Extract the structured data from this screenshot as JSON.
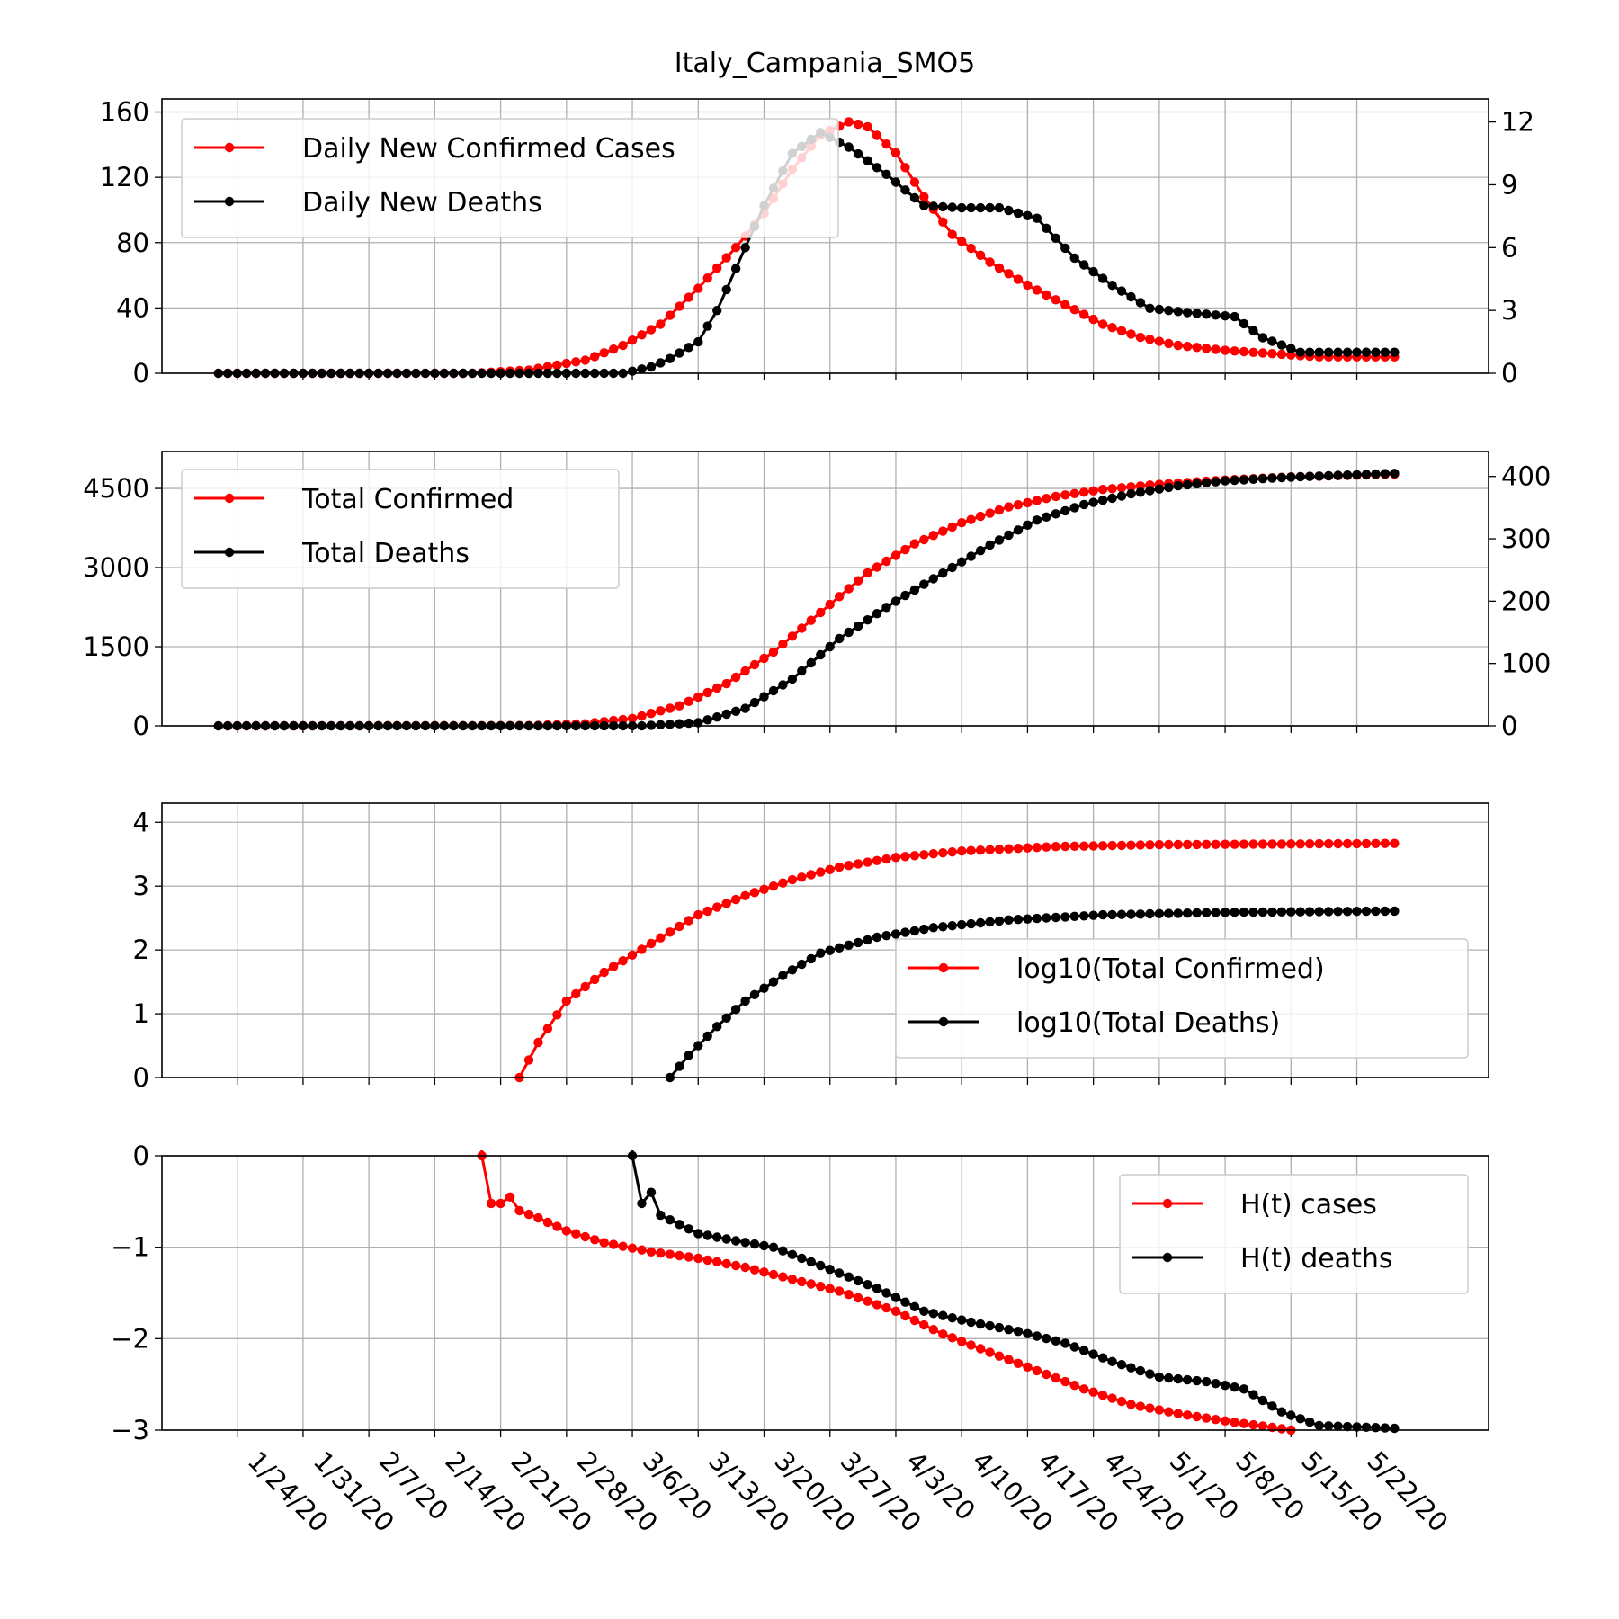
{
  "title": "Italy_Campania_SMO5",
  "colors": {
    "cases": "#ff0000",
    "deaths": "#000000",
    "grid": "#b0b0b0"
  },
  "x_tick_labels": [
    "1/24/20",
    "1/31/20",
    "2/7/20",
    "2/14/20",
    "2/21/20",
    "2/28/20",
    "3/6/20",
    "3/13/20",
    "3/20/20",
    "3/27/20",
    "4/3/20",
    "4/10/20",
    "4/17/20",
    "4/24/20",
    "5/1/20",
    "5/8/20",
    "5/15/20",
    "5/22/20"
  ],
  "chart_data": [
    {
      "type": "line",
      "x_range": [
        "1/22/20",
        "5/26/20"
      ],
      "xlim": [
        "1/16/20",
        "6/5/20"
      ],
      "ylim": [
        0,
        168
      ],
      "y_ticks": [
        0,
        40,
        80,
        120,
        160
      ],
      "y2lim": [
        0,
        13.1
      ],
      "y2_ticks": [
        0,
        3,
        6,
        9,
        12
      ],
      "grid": true,
      "legend": "top-left",
      "series": [
        {
          "name": "Daily New Confirmed Cases",
          "axis": "left",
          "color": "#ff0000",
          "points": [
            [
              "1/22/20",
              0
            ],
            [
              "2/18/20",
              0
            ],
            [
              "2/24/20",
              2
            ],
            [
              "3/1/20",
              8
            ],
            [
              "3/5/20",
              17
            ],
            [
              "3/9/20",
              30
            ],
            [
              "3/13/20",
              52
            ],
            [
              "3/17/20",
              77
            ],
            [
              "3/20/20",
              98
            ],
            [
              "3/23/20",
              125
            ],
            [
              "3/26/20",
              146
            ],
            [
              "3/29/20",
              154
            ],
            [
              "3/31/20",
              151
            ],
            [
              "4/3/20",
              135
            ],
            [
              "4/6/20",
              108
            ],
            [
              "4/9/20",
              85
            ],
            [
              "4/13/20",
              68
            ],
            [
              "4/17/20",
              54
            ],
            [
              "4/21/20",
              42
            ],
            [
              "4/25/20",
              30
            ],
            [
              "4/29/20",
              22
            ],
            [
              "5/3/20",
              17
            ],
            [
              "5/8/20",
              14
            ],
            [
              "5/13/20",
              12
            ],
            [
              "5/18/20",
              10
            ],
            [
              "5/26/20",
              10
            ]
          ]
        },
        {
          "name": "Daily New Deaths",
          "axis": "right",
          "color": "#000000",
          "points": [
            [
              "1/22/20",
              0
            ],
            [
              "3/5/20",
              0
            ],
            [
              "3/8/20",
              0.3
            ],
            [
              "3/10/20",
              0.7
            ],
            [
              "3/13/20",
              1.5
            ],
            [
              "3/15/20",
              3
            ],
            [
              "3/17/20",
              5
            ],
            [
              "3/20/20",
              8
            ],
            [
              "3/23/20",
              10.5
            ],
            [
              "3/26/20",
              11.5
            ],
            [
              "3/29/20",
              10.8
            ],
            [
              "4/2/20",
              9.5
            ],
            [
              "4/6/20",
              8
            ],
            [
              "4/10/20",
              7.9
            ],
            [
              "4/14/20",
              7.9
            ],
            [
              "4/18/20",
              7.4
            ],
            [
              "4/22/20",
              5.5
            ],
            [
              "4/26/20",
              4.2
            ],
            [
              "4/30/20",
              3.1
            ],
            [
              "5/4/20",
              2.9
            ],
            [
              "5/9/20",
              2.7
            ],
            [
              "5/12/20",
              1.7
            ],
            [
              "5/16/20",
              1.0
            ],
            [
              "5/20/20",
              1.0
            ],
            [
              "5/26/20",
              1.0
            ]
          ]
        }
      ]
    },
    {
      "type": "line",
      "x_range": [
        "1/22/20",
        "5/26/20"
      ],
      "xlim": [
        "1/16/20",
        "6/5/20"
      ],
      "ylim": [
        0,
        5200
      ],
      "y_ticks": [
        0,
        1500,
        3000,
        4500
      ],
      "y2lim": [
        0,
        440
      ],
      "y2_ticks": [
        0,
        100,
        200,
        300,
        400
      ],
      "grid": true,
      "legend": "top-left",
      "series": [
        {
          "name": "Total Confirmed",
          "axis": "left",
          "color": "#ff0000",
          "points": [
            [
              "1/22/20",
              0
            ],
            [
              "2/24/20",
              5
            ],
            [
              "3/1/20",
              40
            ],
            [
              "3/6/20",
              140
            ],
            [
              "3/11/20",
              380
            ],
            [
              "3/16/20",
              800
            ],
            [
              "3/21/20",
              1400
            ],
            [
              "3/26/20",
              2150
            ],
            [
              "3/31/20",
              2900
            ],
            [
              "4/5/20",
              3450
            ],
            [
              "4/10/20",
              3850
            ],
            [
              "4/15/20",
              4150
            ],
            [
              "4/20/20",
              4350
            ],
            [
              "4/25/20",
              4480
            ],
            [
              "5/1/20",
              4580
            ],
            [
              "5/8/20",
              4660
            ],
            [
              "5/15/20",
              4720
            ],
            [
              "5/26/20",
              4770
            ]
          ]
        },
        {
          "name": "Total Deaths",
          "axis": "right",
          "color": "#000000",
          "points": [
            [
              "1/22/20",
              0
            ],
            [
              "3/7/20",
              0
            ],
            [
              "3/13/20",
              5
            ],
            [
              "3/18/20",
              28
            ],
            [
              "3/23/20",
              75
            ],
            [
              "3/28/20",
              140
            ],
            [
              "4/3/20",
              200
            ],
            [
              "4/8/20",
              245
            ],
            [
              "4/13/20",
              290
            ],
            [
              "4/18/20",
              330
            ],
            [
              "4/23/20",
              355
            ],
            [
              "4/28/20",
              372
            ],
            [
              "5/3/20",
              385
            ],
            [
              "5/8/20",
              393
            ],
            [
              "5/15/20",
              399
            ],
            [
              "5/26/20",
              405
            ]
          ]
        }
      ]
    },
    {
      "type": "line",
      "x_range": [
        "1/22/20",
        "5/26/20"
      ],
      "xlim": [
        "1/16/20",
        "6/5/20"
      ],
      "ylim": [
        0,
        4.3
      ],
      "y_ticks": [
        0,
        1,
        2,
        3,
        4
      ],
      "grid": true,
      "legend": "lower-right",
      "series": [
        {
          "name": "log10(Total Confirmed)",
          "color": "#ff0000",
          "points": [
            [
              "2/23/20",
              0
            ],
            [
              "2/25/20",
              0.55
            ],
            [
              "2/28/20",
              1.2
            ],
            [
              "3/3/20",
              1.65
            ],
            [
              "3/8/20",
              2.1
            ],
            [
              "3/13/20",
              2.55
            ],
            [
              "3/18/20",
              2.85
            ],
            [
              "3/23/20",
              3.1
            ],
            [
              "3/28/20",
              3.3
            ],
            [
              "4/3/20",
              3.45
            ],
            [
              "4/10/20",
              3.55
            ],
            [
              "4/20/20",
              3.62
            ],
            [
              "5/1/20",
              3.65
            ],
            [
              "5/26/20",
              3.67
            ]
          ]
        },
        {
          "name": "log10(Total Deaths)",
          "color": "#000000",
          "points": [
            [
              "3/10/20",
              0
            ],
            [
              "3/12/20",
              0.35
            ],
            [
              "3/15/20",
              0.8
            ],
            [
              "3/18/20",
              1.2
            ],
            [
              "3/22/20",
              1.6
            ],
            [
              "3/26/20",
              1.95
            ],
            [
              "4/1/20",
              2.2
            ],
            [
              "4/7/20",
              2.35
            ],
            [
              "4/15/20",
              2.47
            ],
            [
              "4/25/20",
              2.55
            ],
            [
              "5/8/20",
              2.59
            ],
            [
              "5/26/20",
              2.61
            ]
          ]
        }
      ]
    },
    {
      "type": "line",
      "x_range": [
        "1/22/20",
        "5/26/20"
      ],
      "xlim": [
        "1/16/20",
        "6/5/20"
      ],
      "ylim": [
        -3,
        0
      ],
      "y_ticks": [
        0,
        -1,
        -2,
        -3
      ],
      "grid": true,
      "legend": "top-right",
      "series": [
        {
          "name": "H(t) cases",
          "color": "#ff0000",
          "points": [
            [
              "2/19/20",
              0
            ],
            [
              "2/20/20",
              -0.52
            ],
            [
              "2/21/20",
              -0.52
            ],
            [
              "2/22/20",
              -0.45
            ],
            [
              "2/23/20",
              -0.6
            ],
            [
              "2/25/20",
              -0.68
            ],
            [
              "2/28/20",
              -0.82
            ],
            [
              "3/3/20",
              -0.95
            ],
            [
              "3/8/20",
              -1.05
            ],
            [
              "3/13/20",
              -1.12
            ],
            [
              "3/18/20",
              -1.22
            ],
            [
              "3/23/20",
              -1.35
            ],
            [
              "3/28/20",
              -1.48
            ],
            [
              "4/3/20",
              -1.7
            ],
            [
              "4/8/20",
              -1.95
            ],
            [
              "4/13/20",
              -2.15
            ],
            [
              "4/18/20",
              -2.35
            ],
            [
              "4/23/20",
              -2.55
            ],
            [
              "4/28/20",
              -2.72
            ],
            [
              "5/3/20",
              -2.82
            ],
            [
              "5/8/20",
              -2.9
            ],
            [
              "5/13/20",
              -2.97
            ],
            [
              "5/15/20",
              -3.0
            ]
          ]
        },
        {
          "name": "H(t) deaths",
          "color": "#000000",
          "points": [
            [
              "3/6/20",
              0
            ],
            [
              "3/7/20",
              -0.52
            ],
            [
              "3/8/20",
              -0.4
            ],
            [
              "3/9/20",
              -0.65
            ],
            [
              "3/10/20",
              -0.7
            ],
            [
              "3/13/20",
              -0.85
            ],
            [
              "3/17/20",
              -0.93
            ],
            [
              "3/21/20",
              -1.0
            ],
            [
              "3/26/20",
              -1.2
            ],
            [
              "4/1/20",
              -1.45
            ],
            [
              "4/6/20",
              -1.7
            ],
            [
              "4/11/20",
              -1.82
            ],
            [
              "4/16/20",
              -1.92
            ],
            [
              "4/21/20",
              -2.05
            ],
            [
              "4/26/20",
              -2.25
            ],
            [
              "5/1/20",
              -2.42
            ],
            [
              "5/6/20",
              -2.47
            ],
            [
              "5/10/20",
              -2.55
            ],
            [
              "5/14/20",
              -2.8
            ],
            [
              "5/18/20",
              -2.95
            ],
            [
              "5/26/20",
              -2.98
            ]
          ]
        }
      ]
    }
  ]
}
